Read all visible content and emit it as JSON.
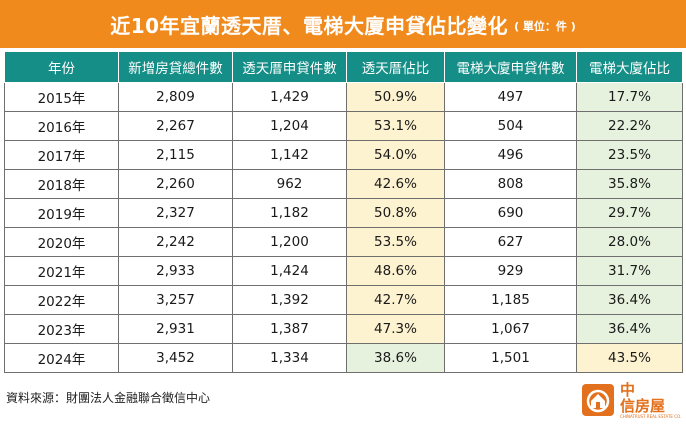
{
  "title": "近10年宜蘭透天厝、電梯大廈申貸佔比變化",
  "unit": "( 單位：件 )",
  "columns": [
    "年份",
    "新增房貸總件數",
    "透天厝申貸件數",
    "透天厝佔比",
    "電梯大廈申貸件數",
    "電梯大廈佔比"
  ],
  "rows": [
    [
      "2015年",
      "2,809",
      "1,429",
      "50.9%",
      "497",
      "17.7%"
    ],
    [
      "2016年",
      "2,267",
      "1,204",
      "53.1%",
      "504",
      "22.2%"
    ],
    [
      "2017年",
      "2,115",
      "1,142",
      "54.0%",
      "496",
      "23.5%"
    ],
    [
      "2018年",
      "2,260",
      "962",
      "42.6%",
      "808",
      "35.8%"
    ],
    [
      "2019年",
      "2,327",
      "1,182",
      "50.8%",
      "690",
      "29.7%"
    ],
    [
      "2020年",
      "2,242",
      "1,200",
      "53.5%",
      "627",
      "28.0%"
    ],
    [
      "2021年",
      "2,933",
      "1,424",
      "48.6%",
      "929",
      "31.7%"
    ],
    [
      "2022年",
      "3,257",
      "1,392",
      "42.7%",
      "1,185",
      "36.4%"
    ],
    [
      "2023年",
      "2,931",
      "1,387",
      "47.3%",
      "1,067",
      "36.4%"
    ],
    [
      "2024年",
      "3,452",
      "1,334",
      "38.6%",
      "1,501",
      "43.5%"
    ]
  ],
  "source": "資料來源：財團法人金融聯合徵信中心",
  "logo": {
    "line1": "中",
    "line2": "信房屋",
    "sub": "CHINATRUST REAL ESTATE CO."
  },
  "colors": {
    "title_bg": "#f08a1c",
    "header_bg": "#148e86",
    "highlight_cream": "#fdf3d0",
    "highlight_green": "#e6f2de",
    "logo": "#e2701c"
  }
}
